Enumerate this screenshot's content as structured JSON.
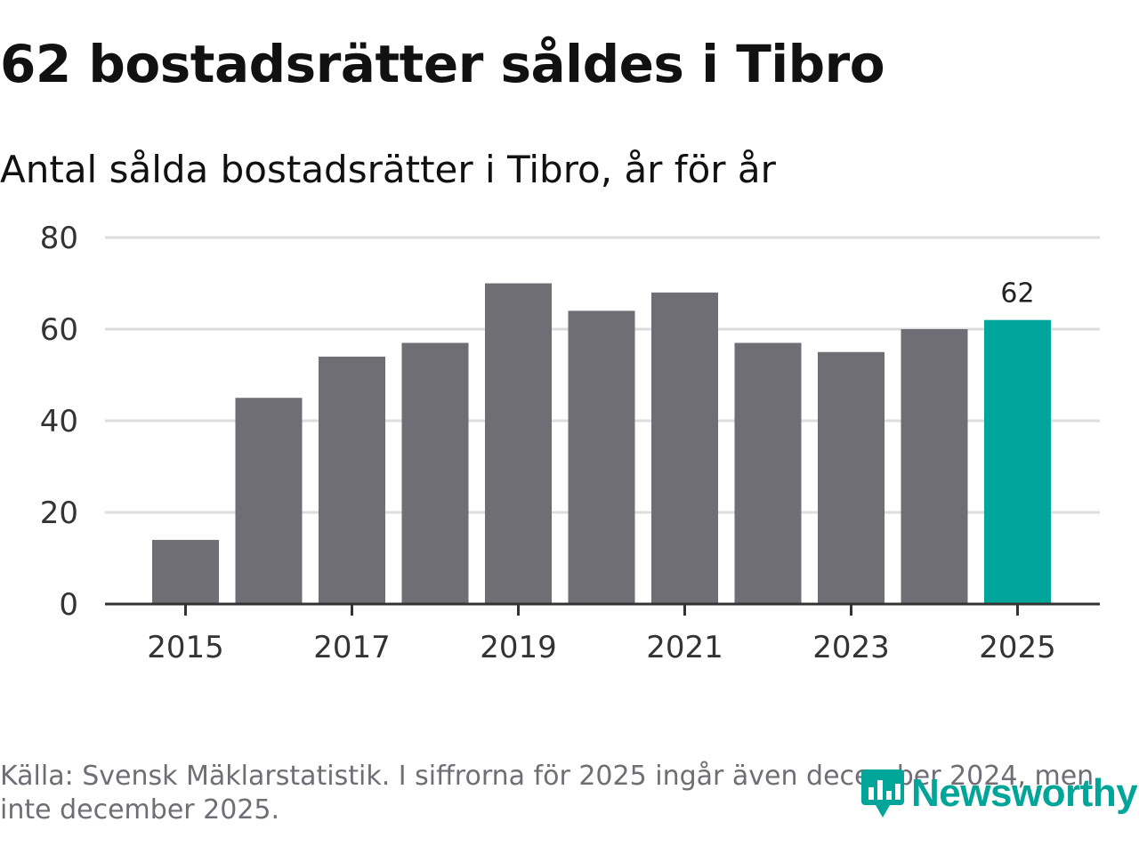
{
  "header": {
    "title": "62 bostadsrätter såldes i Tibro",
    "subtitle": "Antal sålda bostadsrätter i Tibro, år för år"
  },
  "footer": {
    "source": "Källa: Svensk Mäklarstatistik. I siffrorna för 2025 ingår även december 2024, men inte december 2025."
  },
  "brand": {
    "name": "Newsworthy",
    "icon": "newsworthy-logo-icon",
    "color": "#00a59a"
  },
  "colors": {
    "bar": "#6f6e75",
    "highlight": "#00a59a",
    "grid": "#dddddd",
    "axis": "#333333"
  },
  "chart_data": {
    "type": "bar",
    "title": "Antal sålda bostadsrätter i Tibro, år för år",
    "categories": [
      "2015",
      "2016",
      "2017",
      "2018",
      "2019",
      "2020",
      "2021",
      "2022",
      "2023",
      "2024",
      "2025"
    ],
    "values": [
      14,
      45,
      54,
      57,
      70,
      64,
      68,
      57,
      55,
      60,
      62
    ],
    "highlight_index": 10,
    "data_labels": [
      {
        "index": 10,
        "text": "62"
      }
    ],
    "x_tick_labels": [
      "2015",
      "2017",
      "2019",
      "2021",
      "2023",
      "2025"
    ],
    "y_ticks": [
      0,
      20,
      40,
      60,
      80
    ],
    "ylim": [
      0,
      80
    ],
    "xlabel": "",
    "ylabel": "",
    "grid": true,
    "legend": "none"
  }
}
